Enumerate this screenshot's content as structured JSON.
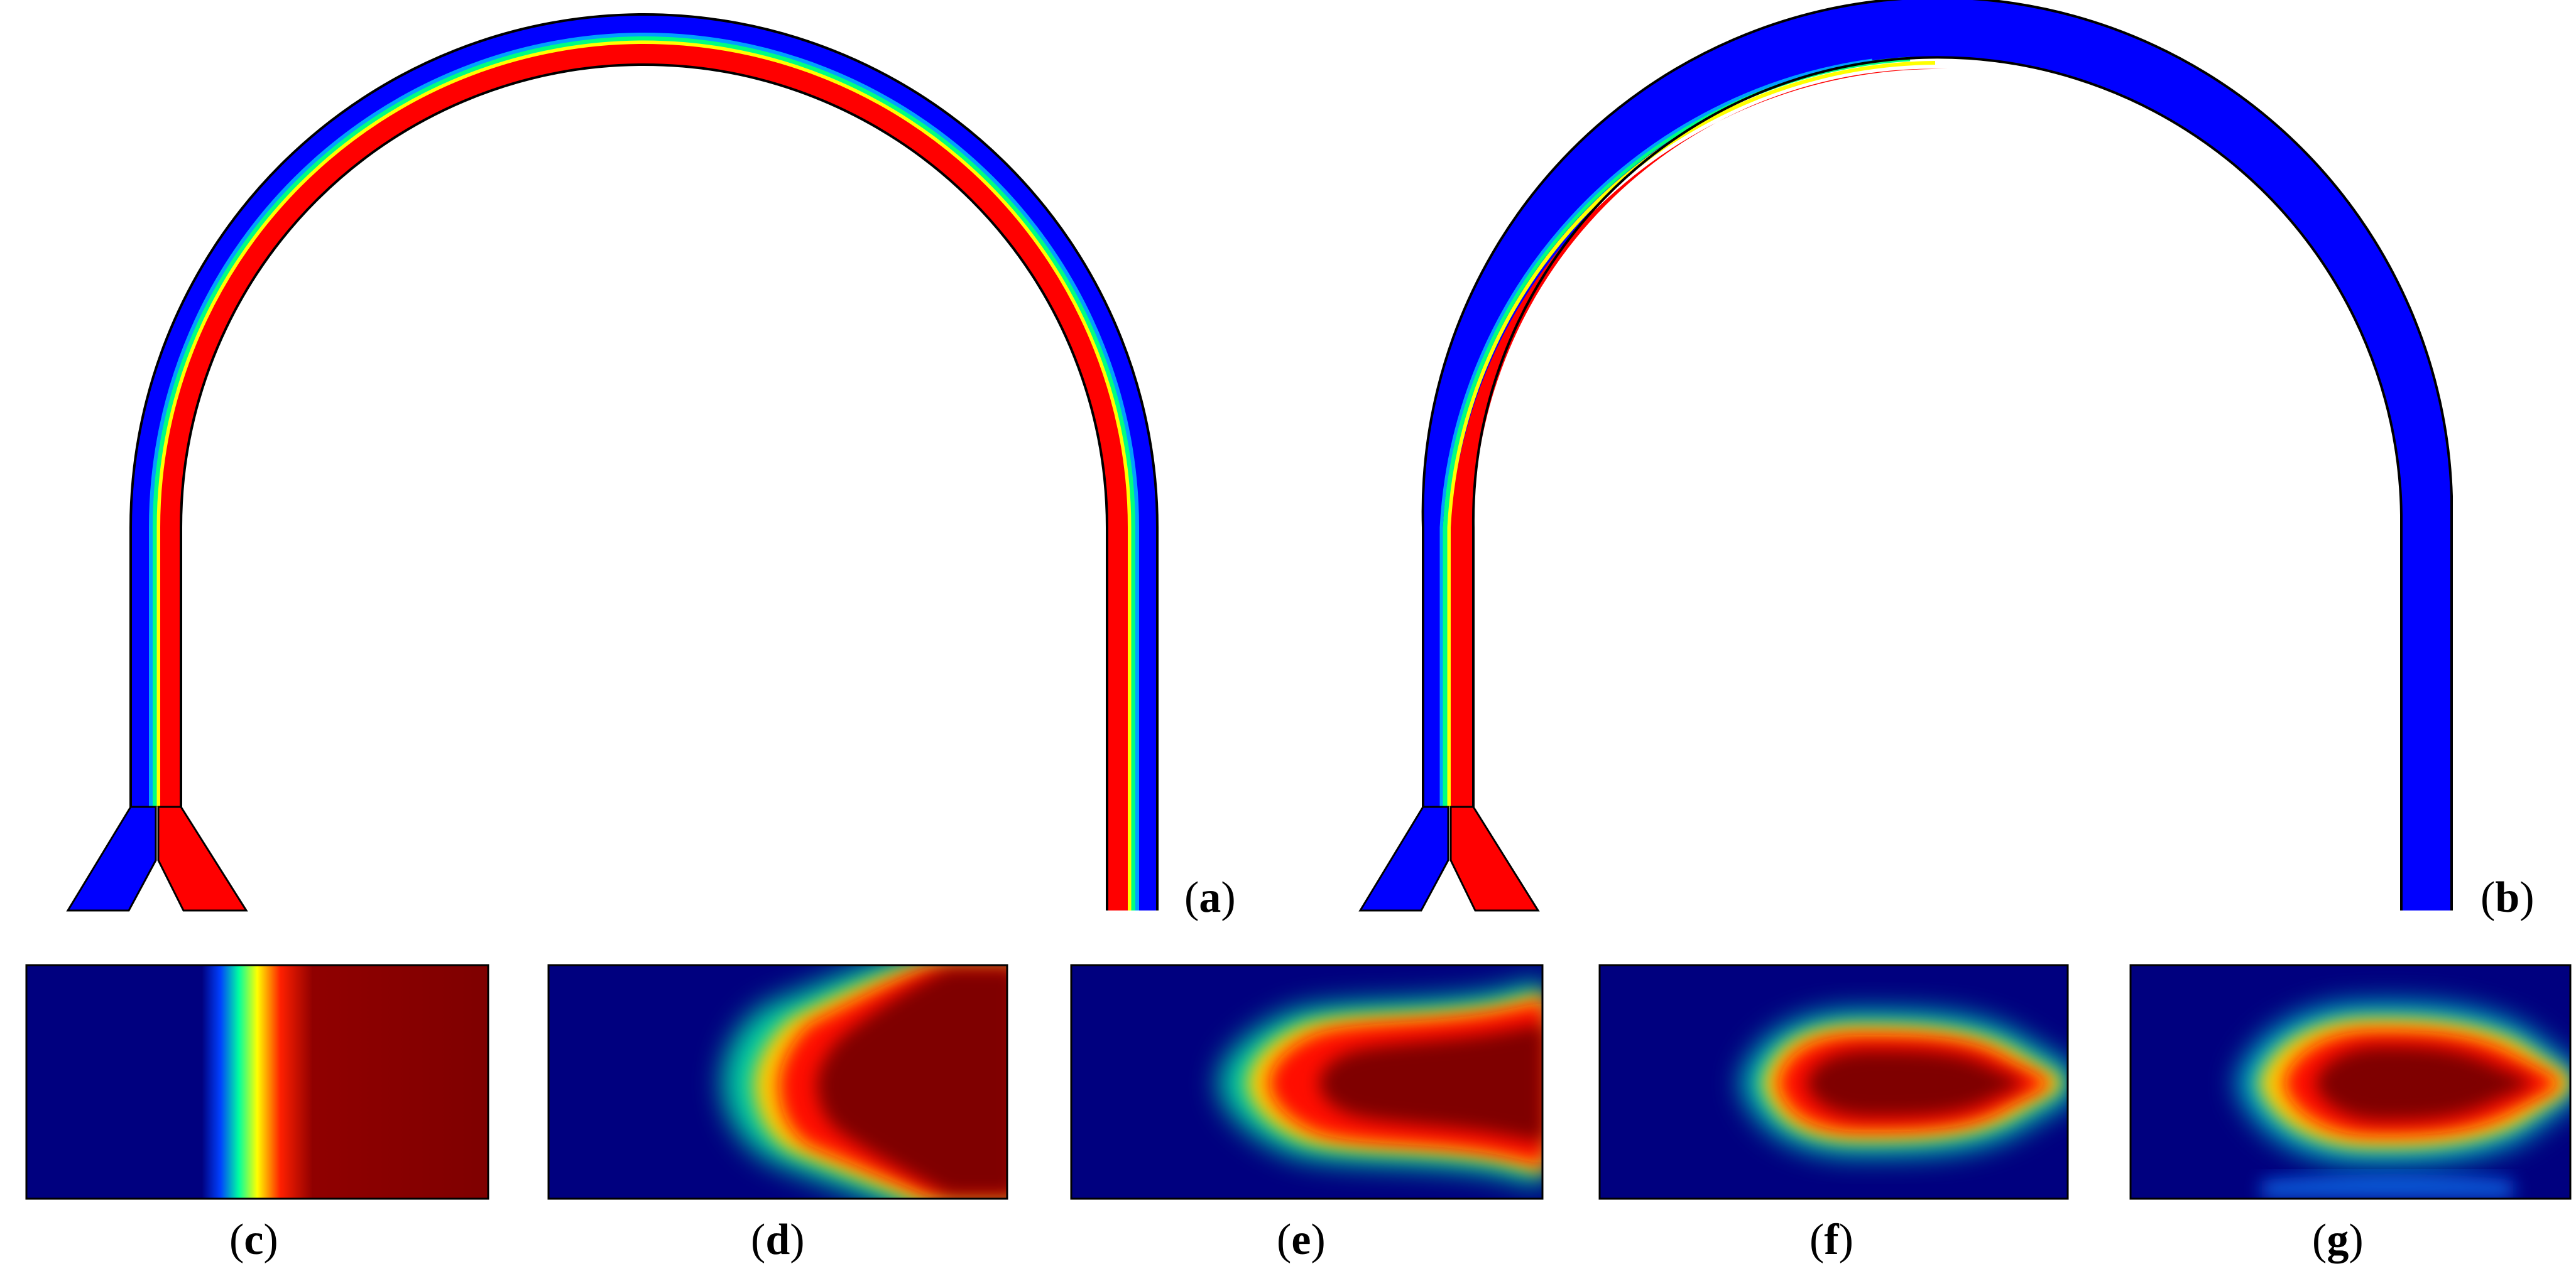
{
  "labels": {
    "a": "a",
    "b": "b",
    "c": "c",
    "d": "d",
    "e": "e",
    "f": "f",
    "g": "g"
  },
  "colormap": {
    "low": "#00007f",
    "mid_low": "#0000ff",
    "mid": "#00ff80",
    "mid_high": "#ffff00",
    "high": "#ff0000",
    "max": "#7f0000"
  },
  "channel_colors": {
    "blue": "#0000ff",
    "red": "#ff0000",
    "interface": "#00ff80"
  },
  "panel_descriptions": [
    {
      "id": "c"
    },
    {
      "id": "d"
    },
    {
      "id": "e"
    },
    {
      "id": "f"
    },
    {
      "id": "g"
    }
  ]
}
